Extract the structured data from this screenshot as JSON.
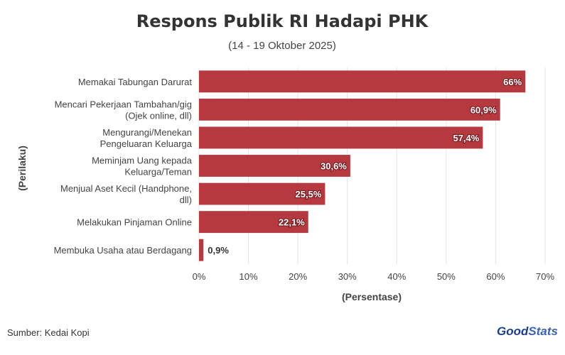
{
  "chart_data": {
    "type": "bar",
    "orientation": "horizontal",
    "title": "Respons Publik RI Hadapi PHK",
    "subtitle": "(14 - 19 Oktober 2025)",
    "xlabel": "(Persentase)",
    "ylabel": "(Perilaku)",
    "xlim": [
      0,
      70
    ],
    "xticks": [
      "0%",
      "10%",
      "20%",
      "30%",
      "40%",
      "50%",
      "60%",
      "70%"
    ],
    "grid": true,
    "bar_color": "#b5393f",
    "categories": [
      [
        "Memakai Tabungan Darurat"
      ],
      [
        "Mencari Pekerjaan Tambahan/gig",
        "(Ojek online, dll)"
      ],
      [
        "Mengurangi/Menekan",
        "Pengeluaran Keluarga"
      ],
      [
        "Meminjam Uang kepada",
        "Keluarga/Teman"
      ],
      [
        "Menjual Aset Kecil (Handphone,",
        "dll)"
      ],
      [
        "Melakukan Pinjaman Online"
      ],
      [
        "Membuka Usaha atau Berdagang"
      ]
    ],
    "values": [
      66,
      60.9,
      57.4,
      30.6,
      25.5,
      22.1,
      0.9
    ],
    "value_labels": [
      "66%",
      "60,9%",
      "57,4%",
      "30,6%",
      "25,5%",
      "22,1%",
      "0,9%"
    ]
  },
  "footer": {
    "source": "Sumber: Kedai Kopi",
    "brand_part1": "Good",
    "brand_part2": "Stats"
  }
}
